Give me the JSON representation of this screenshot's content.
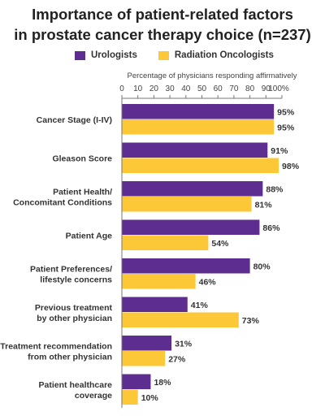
{
  "title_line1": "Importance of patient-related factors",
  "title_line2": "in prostate cancer therapy choice (n=237)",
  "legend": {
    "urologists": "Urologists",
    "radiation_oncologists": "Radiation Oncologists"
  },
  "colors": {
    "urologists": "#5e2d90",
    "radiation_oncologists": "#fcc837"
  },
  "chart_data": {
    "type": "bar",
    "orientation": "horizontal",
    "title": "Importance of patient-related factors in prostate cancer therapy choice (n=237)",
    "xlabel": "Percentage of physicians responding affirmatively",
    "xlim": [
      0,
      100
    ],
    "xticks": [
      "0",
      "10",
      "20",
      "30",
      "40",
      "50",
      "60",
      "70",
      "80",
      "90",
      "100%"
    ],
    "legend_position": "top",
    "categories": [
      [
        "Cancer Stage (I-IV)"
      ],
      [
        "Gleason Score"
      ],
      [
        "Patient Health/",
        "Concomitant Conditions"
      ],
      [
        "Patient Age"
      ],
      [
        "Patient Preferences/",
        "lifestyle concerns"
      ],
      [
        "Previous treatment",
        "by other physician"
      ],
      [
        "Treatment recommendation",
        "from other physician"
      ],
      [
        "Patient healthcare",
        "coverage"
      ]
    ],
    "series": [
      {
        "name": "Urologists",
        "values": [
          95,
          91,
          88,
          86,
          80,
          41,
          31,
          18
        ]
      },
      {
        "name": "Radiation Oncologists",
        "values": [
          95,
          98,
          81,
          54,
          46,
          73,
          27,
          10
        ]
      }
    ]
  }
}
